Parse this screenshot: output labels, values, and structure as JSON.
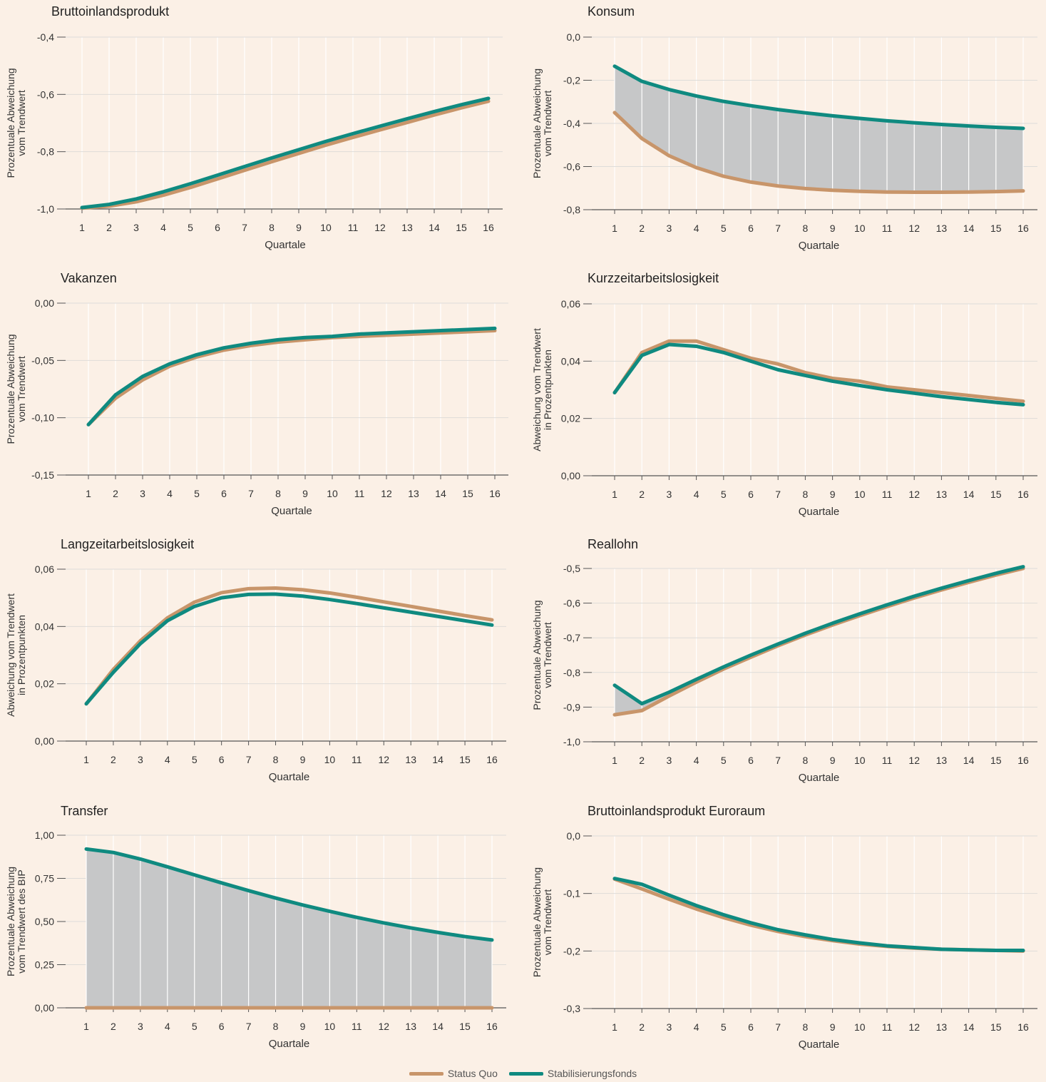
{
  "colors": {
    "background": "#fbf0e6",
    "status_quo": "#c8956a",
    "stabilisierung": "#0f8a80",
    "fill": "#c6c7c8",
    "grid": "#dedcd9",
    "axis": "#555555",
    "text": "#333333"
  },
  "legend": {
    "status_quo": "Status Quo",
    "stabilisierung": "Stabilisierungsfonds"
  },
  "chart_data": [
    {
      "type": "line",
      "title": "Bruttoinlandsprodukt",
      "ylabel": [
        "Prozentuale Abweichung",
        "vom Trendwert"
      ],
      "xlabel": "Quartale",
      "x": [
        1,
        2,
        3,
        4,
        5,
        6,
        7,
        8,
        9,
        10,
        11,
        12,
        13,
        14,
        15,
        16
      ],
      "ylim": [
        -1.0,
        -0.4
      ],
      "yticks": [
        -1.0,
        -0.8,
        -0.6,
        -0.4
      ],
      "ytick_labels": [
        "-1,0",
        "-0,8",
        "-0,6",
        "-0,4"
      ],
      "fill_between": false,
      "series": [
        {
          "name": "Status Quo",
          "values": [
            -0.997,
            -0.99,
            -0.975,
            -0.952,
            -0.925,
            -0.895,
            -0.865,
            -0.835,
            -0.806,
            -0.777,
            -0.75,
            -0.724,
            -0.698,
            -0.672,
            -0.647,
            -0.624
          ]
        },
        {
          "name": "Stabilisierungsfonds",
          "values": [
            -0.995,
            -0.984,
            -0.965,
            -0.94,
            -0.912,
            -0.882,
            -0.852,
            -0.822,
            -0.793,
            -0.764,
            -0.737,
            -0.711,
            -0.685,
            -0.66,
            -0.636,
            -0.614
          ]
        }
      ]
    },
    {
      "type": "line",
      "title": "Konsum",
      "ylabel": [
        "Prozentuale Abweichung",
        "vom Trendwert"
      ],
      "xlabel": "Quartale",
      "x": [
        1,
        2,
        3,
        4,
        5,
        6,
        7,
        8,
        9,
        10,
        11,
        12,
        13,
        14,
        15,
        16
      ],
      "ylim": [
        -0.8,
        0.0
      ],
      "yticks": [
        -0.8,
        -0.6,
        -0.4,
        -0.2,
        0.0
      ],
      "ytick_labels": [
        "-0,8",
        "-0,6",
        "-0,4",
        "-0,2",
        "0,0"
      ],
      "fill_between": true,
      "series": [
        {
          "name": "Status Quo",
          "values": [
            -0.35,
            -0.47,
            -0.55,
            -0.605,
            -0.645,
            -0.672,
            -0.69,
            -0.702,
            -0.71,
            -0.715,
            -0.718,
            -0.719,
            -0.719,
            -0.718,
            -0.716,
            -0.713
          ]
        },
        {
          "name": "Stabilisierungsfonds",
          "values": [
            -0.135,
            -0.205,
            -0.243,
            -0.273,
            -0.298,
            -0.318,
            -0.336,
            -0.351,
            -0.365,
            -0.377,
            -0.388,
            -0.397,
            -0.405,
            -0.412,
            -0.418,
            -0.423
          ]
        }
      ]
    },
    {
      "type": "line",
      "title": "Vakanzen",
      "ylabel": [
        "Prozentuale Abweichung",
        "vom Trendwert"
      ],
      "xlabel": "Quartale",
      "x": [
        1,
        2,
        3,
        4,
        5,
        6,
        7,
        8,
        9,
        10,
        11,
        12,
        13,
        14,
        15,
        16
      ],
      "ylim": [
        -0.15,
        0.0
      ],
      "yticks": [
        -0.15,
        -0.1,
        -0.05,
        0.0
      ],
      "ytick_labels": [
        "-0,15",
        "-0,10",
        "-0,05",
        "0,00"
      ],
      "fill_between": false,
      "series": [
        {
          "name": "Status Quo",
          "values": [
            -0.106,
            -0.083,
            -0.067,
            -0.055,
            -0.047,
            -0.041,
            -0.037,
            -0.034,
            -0.032,
            -0.03,
            -0.029,
            -0.028,
            -0.027,
            -0.026,
            -0.025,
            -0.024
          ]
        },
        {
          "name": "Stabilisierungsfonds",
          "values": [
            -0.106,
            -0.08,
            -0.064,
            -0.053,
            -0.045,
            -0.039,
            -0.035,
            -0.032,
            -0.03,
            -0.029,
            -0.027,
            -0.026,
            -0.025,
            -0.024,
            -0.023,
            -0.022
          ]
        }
      ]
    },
    {
      "type": "line",
      "title": "Kurzzeitarbeitslosigkeit",
      "ylabel": [
        "Abweichung vom Trendwert",
        "in Prozentpunkten"
      ],
      "xlabel": "Quartale",
      "x": [
        1,
        2,
        3,
        4,
        5,
        6,
        7,
        8,
        9,
        10,
        11,
        12,
        13,
        14,
        15,
        16
      ],
      "ylim": [
        0.0,
        0.06
      ],
      "yticks": [
        0.0,
        0.02,
        0.04,
        0.06
      ],
      "ytick_labels": [
        "0,00",
        "0,02",
        "0,04",
        "0,06"
      ],
      "fill_between": false,
      "series": [
        {
          "name": "Status Quo",
          "values": [
            0.029,
            0.043,
            0.047,
            0.047,
            0.044,
            0.041,
            0.039,
            0.036,
            0.034,
            0.033,
            0.031,
            0.03,
            0.029,
            0.028,
            0.027,
            0.026
          ]
        },
        {
          "name": "Stabilisierungsfonds",
          "values": [
            0.029,
            0.042,
            0.0458,
            0.0452,
            0.043,
            0.04,
            0.037,
            0.035,
            0.033,
            0.0315,
            0.03,
            0.0288,
            0.0276,
            0.0266,
            0.0256,
            0.0248
          ]
        }
      ]
    },
    {
      "type": "line",
      "title": "Langzeitarbeitslosigkeit",
      "ylabel": [
        "Abweichung vom Trendwert",
        "in Prozentpunkten"
      ],
      "xlabel": "Quartale",
      "x": [
        1,
        2,
        3,
        4,
        5,
        6,
        7,
        8,
        9,
        10,
        11,
        12,
        13,
        14,
        15,
        16
      ],
      "ylim": [
        0.0,
        0.06
      ],
      "yticks": [
        0.0,
        0.02,
        0.04,
        0.06
      ],
      "ytick_labels": [
        "0,00",
        "0,02",
        "0,04",
        "0,06"
      ],
      "fill_between": false,
      "series": [
        {
          "name": "Status Quo",
          "values": [
            0.013,
            0.025,
            0.035,
            0.043,
            0.0485,
            0.0518,
            0.0532,
            0.0534,
            0.0528,
            0.0517,
            0.0502,
            0.0486,
            0.047,
            0.0454,
            0.0438,
            0.0423
          ]
        },
        {
          "name": "Stabilisierungsfonds",
          "values": [
            0.013,
            0.024,
            0.034,
            0.042,
            0.047,
            0.05,
            0.0512,
            0.0513,
            0.0506,
            0.0494,
            0.048,
            0.0465,
            0.045,
            0.0435,
            0.042,
            0.0405
          ]
        }
      ]
    },
    {
      "type": "line",
      "title": "Reallohn",
      "ylabel": [
        "Prozentuale Abweichung",
        "vom Trendwert"
      ],
      "xlabel": "Quartale",
      "x": [
        1,
        2,
        3,
        4,
        5,
        6,
        7,
        8,
        9,
        10,
        11,
        12,
        13,
        14,
        15,
        16
      ],
      "ylim": [
        -1.0,
        -0.5
      ],
      "yticks": [
        -1.0,
        -0.9,
        -0.8,
        -0.7,
        -0.6,
        -0.5
      ],
      "ytick_labels": [
        "-1,0",
        "-0,9",
        "-0,8",
        "-0,7",
        "-0,6",
        "-0,5"
      ],
      "fill_between": true,
      "series": [
        {
          "name": "Status Quo",
          "values": [
            -0.922,
            -0.91,
            -0.868,
            -0.828,
            -0.79,
            -0.756,
            -0.723,
            -0.692,
            -0.663,
            -0.636,
            -0.61,
            -0.585,
            -0.562,
            -0.54,
            -0.519,
            -0.5
          ]
        },
        {
          "name": "Stabilisierungsfonds",
          "values": [
            -0.837,
            -0.89,
            -0.857,
            -0.82,
            -0.784,
            -0.75,
            -0.718,
            -0.687,
            -0.658,
            -0.631,
            -0.605,
            -0.58,
            -0.557,
            -0.535,
            -0.514,
            -0.495
          ]
        }
      ]
    },
    {
      "type": "line",
      "title": "Transfer",
      "ylabel": [
        "Prozentuale Abweichung",
        "vom Trendwert des BIP"
      ],
      "xlabel": "Quartale",
      "x": [
        1,
        2,
        3,
        4,
        5,
        6,
        7,
        8,
        9,
        10,
        11,
        12,
        13,
        14,
        15,
        16
      ],
      "ylim": [
        0.0,
        1.0
      ],
      "yticks": [
        0.0,
        0.25,
        0.5,
        0.75,
        1.0
      ],
      "ytick_labels": [
        "0,00",
        "0,25",
        "0,50",
        "0,75",
        "1,00"
      ],
      "fill_between": true,
      "series": [
        {
          "name": "Status Quo",
          "values": [
            0,
            0,
            0,
            0,
            0,
            0,
            0,
            0,
            0,
            0,
            0,
            0,
            0,
            0,
            0,
            0
          ]
        },
        {
          "name": "Stabilisierungsfonds",
          "values": [
            0.92,
            0.9,
            0.862,
            0.817,
            0.77,
            0.724,
            0.679,
            0.636,
            0.596,
            0.559,
            0.524,
            0.492,
            0.463,
            0.437,
            0.413,
            0.393
          ]
        }
      ]
    },
    {
      "type": "line",
      "title": "Bruttoinlandsprodukt Euroraum",
      "ylabel": [
        "Prozentuale Abweichung",
        "vom Trendwert"
      ],
      "xlabel": "Quartale",
      "x": [
        1,
        2,
        3,
        4,
        5,
        6,
        7,
        8,
        9,
        10,
        11,
        12,
        13,
        14,
        15,
        16
      ],
      "ylim": [
        -0.3,
        0.0
      ],
      "yticks": [
        -0.3,
        -0.2,
        -0.1,
        0.0
      ],
      "ytick_labels": [
        "-0,3",
        "-0,2",
        "-0,1",
        "0,0"
      ],
      "fill_between": false,
      "series": [
        {
          "name": "Status Quo",
          "values": [
            -0.075,
            -0.092,
            -0.11,
            -0.127,
            -0.142,
            -0.155,
            -0.166,
            -0.175,
            -0.182,
            -0.188,
            -0.192,
            -0.195,
            -0.197,
            -0.198,
            -0.199,
            -0.2
          ]
        },
        {
          "name": "Stabilisierungsfonds",
          "values": [
            -0.074,
            -0.084,
            -0.103,
            -0.121,
            -0.137,
            -0.151,
            -0.163,
            -0.172,
            -0.18,
            -0.186,
            -0.191,
            -0.194,
            -0.197,
            -0.198,
            -0.199,
            -0.199
          ]
        }
      ]
    }
  ]
}
